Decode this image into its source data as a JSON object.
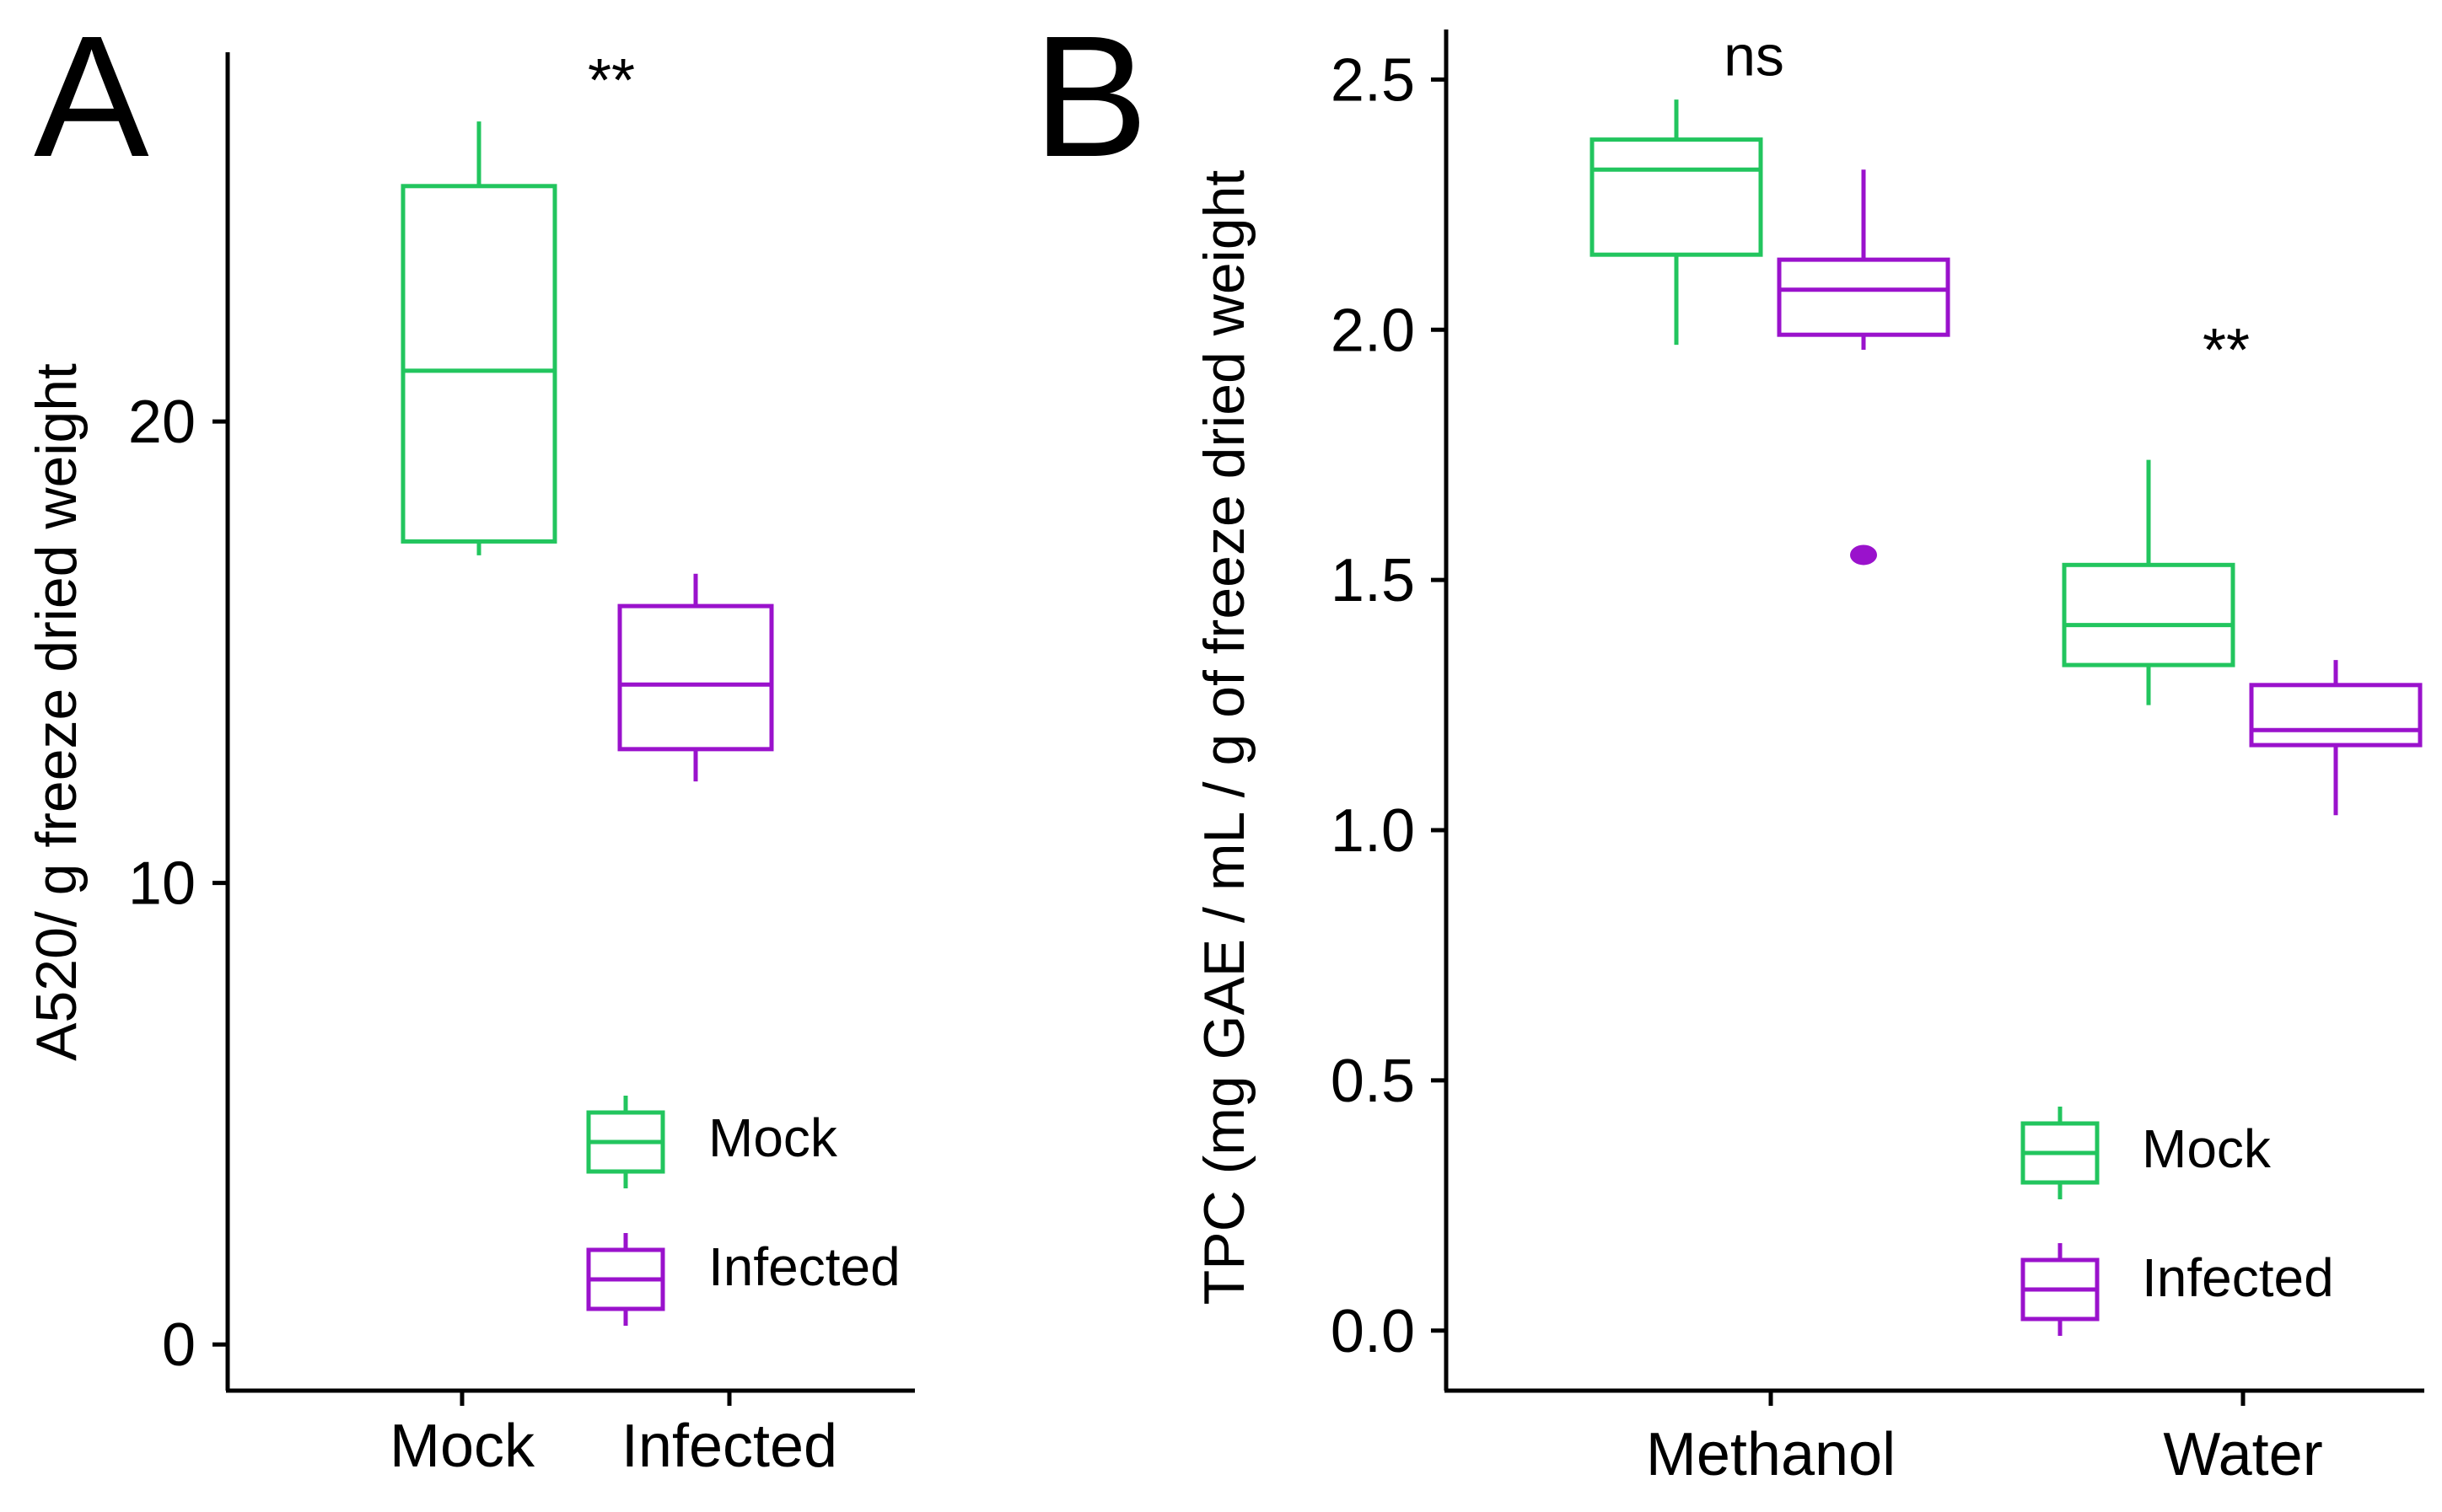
{
  "colors": {
    "mock": "#22c55e",
    "infected": "#9a12cc",
    "axis": "#000000"
  },
  "chart_data": [
    {
      "panel_label": "A",
      "type": "box",
      "categories": [
        "Mock",
        "Infected"
      ],
      "xlabel": "",
      "ylabel": "A520/ g freeze dried weight",
      "ylim": [
        -1,
        28
      ],
      "yticks": [
        0,
        10,
        20
      ],
      "ytick_labels": [
        "0",
        "10",
        "20"
      ],
      "series": [
        {
          "name": "Mock",
          "color": "#22c55e",
          "boxes": [
            {
              "category": "Mock",
              "min": 17.1,
              "q1": 17.4,
              "median": 21.1,
              "q3": 25.1,
              "max": 26.5,
              "outliers": []
            }
          ]
        },
        {
          "name": "Infected",
          "color": "#9a12cc",
          "boxes": [
            {
              "category": "Infected",
              "min": 12.2,
              "q1": 12.9,
              "median": 14.3,
              "q3": 16.0,
              "max": 16.7,
              "outliers": []
            }
          ]
        }
      ],
      "annotations": [
        {
          "text": "**",
          "category": "Mock",
          "side": "right",
          "y": 27.4
        }
      ],
      "legend": {
        "position": "bottom-right",
        "entries": [
          "Mock",
          "Infected"
        ]
      },
      "grid": false
    },
    {
      "panel_label": "B",
      "type": "box",
      "categories": [
        "Methanol",
        "Water"
      ],
      "xlabel": "",
      "ylabel": "TPC (mg GAE / mL / g of freeze dried weight",
      "ylim": [
        -0.12,
        2.6
      ],
      "yticks": [
        0.0,
        0.5,
        1.0,
        1.5,
        2.0,
        2.5
      ],
      "ytick_labels": [
        "0.0",
        "0.5",
        "1.0",
        "1.5",
        "2.0",
        "2.5"
      ],
      "series": [
        {
          "name": "Mock",
          "color": "#22c55e",
          "boxes": [
            {
              "category": "Methanol",
              "min": 1.97,
              "q1": 2.15,
              "median": 2.32,
              "q3": 2.38,
              "max": 2.46,
              "outliers": []
            },
            {
              "category": "Water",
              "min": 1.25,
              "q1": 1.33,
              "median": 1.41,
              "q3": 1.53,
              "max": 1.74,
              "outliers": []
            }
          ]
        },
        {
          "name": "Infected",
          "color": "#9a12cc",
          "boxes": [
            {
              "category": "Methanol",
              "min": 1.96,
              "q1": 1.99,
              "median": 2.08,
              "q3": 2.14,
              "max": 2.32,
              "outliers": [
                1.55
              ]
            },
            {
              "category": "Water",
              "min": 1.03,
              "q1": 1.17,
              "median": 1.2,
              "q3": 1.29,
              "max": 1.34,
              "outliers": []
            }
          ]
        }
      ],
      "annotations": [
        {
          "text": "ns",
          "category": "Methanol",
          "y": 2.55
        },
        {
          "text": "**",
          "category": "Water",
          "y": 1.96
        }
      ],
      "legend": {
        "position": "bottom-right",
        "entries": [
          "Mock",
          "Infected"
        ]
      },
      "grid": false
    }
  ]
}
